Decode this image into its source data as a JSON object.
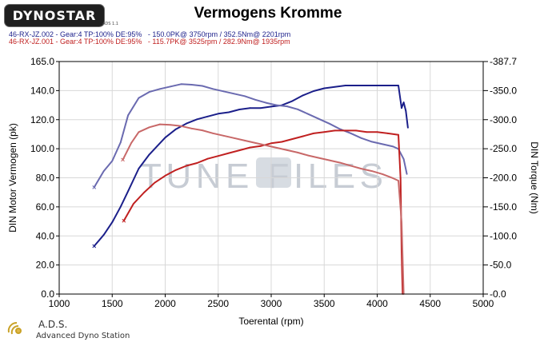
{
  "header": {
    "logo_text": "DYNOSTAR",
    "logo_sub": "ADS 1.1",
    "title": "Vermogens Kromme",
    "run1": "46-RX-JZ.002 - Gear:4 TP:100% DE:95%   - 150.0PK@ 3750rpm / 352.5Nm@ 2201rpm",
    "run2": "46-RX-JZ.001 - Gear:4 TP:100% DE:95%   - 115.7PK@ 3525rpm / 282.9Nm@ 1935rpm"
  },
  "footer": {
    "brand": "A.D.S.",
    "brand_sub": "Advanced Dyno Station"
  },
  "watermark": "TUNE FILES",
  "colors": {
    "run1_power": "#1b1f8a",
    "run1_torque": "#6a6ab0",
    "run2_power": "#c02020",
    "run2_torque": "#c86868"
  },
  "chart_data": {
    "type": "line",
    "title": "Vermogens Kromme",
    "xlabel": "Toerental (rpm)",
    "ylabel": "DIN Motor Vermogen (pk)",
    "y2label": "DIN Torque (Nm)",
    "xlim": [
      1000,
      5000
    ],
    "ylim": [
      0,
      165
    ],
    "y2lim": [
      0,
      387.7
    ],
    "x_ticks": [
      "1000",
      "1500",
      "2000",
      "2500",
      "3000",
      "3500",
      "4000",
      "4500",
      "5000"
    ],
    "y_ticks": [
      "0.0",
      "20.0",
      "40.0",
      "60.0",
      "80.0",
      "100.0",
      "120.0",
      "140.0",
      "165.0"
    ],
    "y2_ticks": [
      "0.0",
      "50.0",
      "100.0",
      "150.0",
      "200.0",
      "250.0",
      "300.0",
      "350.0",
      "387.7"
    ],
    "grid": true,
    "series": [
      {
        "name": "46-RX-JZ.002 Vermogen",
        "axis": "left",
        "x": [
          1330,
          1420,
          1500,
          1580,
          1650,
          1750,
          1850,
          2000,
          2100,
          2200,
          2300,
          2400,
          2500,
          2600,
          2700,
          2800,
          2900,
          3000,
          3100,
          3200,
          3300,
          3400,
          3500,
          3600,
          3700,
          3800,
          3900,
          4000,
          4100,
          4200,
          4230,
          4250,
          4270,
          4290
        ],
        "y": [
          34,
          42,
          51,
          62,
          73,
          89,
          99,
          111,
          117,
          121,
          124,
          126,
          128,
          129,
          131,
          132,
          132,
          133,
          134,
          137,
          141,
          144,
          146,
          147,
          148,
          148,
          148,
          148,
          148,
          148,
          132,
          136,
          130,
          118
        ]
      },
      {
        "name": "46-RX-JZ.002 Torque",
        "axis": "right",
        "x": [
          1330,
          1420,
          1500,
          1580,
          1650,
          1750,
          1850,
          1950,
          2050,
          2150,
          2250,
          2350,
          2450,
          2550,
          2650,
          2750,
          2850,
          2950,
          3050,
          3150,
          3250,
          3350,
          3450,
          3550,
          3650,
          3750,
          3850,
          3950,
          4050,
          4150,
          4200,
          4250,
          4280
        ],
        "y": [
          178,
          205,
          222,
          253,
          298,
          327,
          337,
          342,
          346,
          350,
          349,
          347,
          342,
          338,
          334,
          330,
          324,
          319,
          315,
          313,
          308,
          300,
          292,
          284,
          275,
          268,
          260,
          254,
          250,
          246,
          242,
          225,
          200
        ]
      },
      {
        "name": "46-RX-JZ.001 Vermogen",
        "axis": "left",
        "x": [
          1610,
          1700,
          1800,
          1900,
          2000,
          2100,
          2200,
          2300,
          2400,
          2500,
          2600,
          2700,
          2800,
          2900,
          3000,
          3100,
          3200,
          3300,
          3400,
          3500,
          3600,
          3700,
          3800,
          3900,
          4000,
          4100,
          4200,
          4220,
          4230,
          4240
        ],
        "y": [
          52,
          64,
          72,
          79,
          84,
          88,
          91,
          93,
          96,
          98,
          100,
          102,
          104,
          105,
          107,
          108,
          110,
          112,
          114,
          115,
          116,
          116,
          116,
          115,
          115,
          114,
          113,
          82,
          30,
          0
        ]
      },
      {
        "name": "46-RX-JZ.001 Torque",
        "axis": "right",
        "x": [
          1600,
          1680,
          1750,
          1850,
          1950,
          2050,
          2150,
          2250,
          2350,
          2450,
          2550,
          2650,
          2750,
          2850,
          2950,
          3050,
          3150,
          3250,
          3350,
          3450,
          3550,
          3650,
          3750,
          3850,
          3950,
          4050,
          4150,
          4200,
          4230,
          4250
        ],
        "y": [
          224,
          252,
          270,
          278,
          283,
          282,
          280,
          276,
          273,
          268,
          264,
          260,
          256,
          252,
          248,
          244,
          240,
          236,
          231,
          227,
          223,
          219,
          214,
          209,
          205,
          200,
          193,
          189,
          120,
          0
        ]
      }
    ]
  }
}
